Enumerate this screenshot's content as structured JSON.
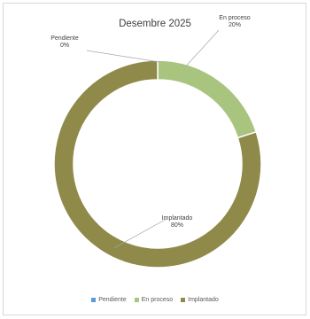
{
  "chart_data": {
    "type": "pie",
    "title": "Desembre 2025",
    "categories": [
      "Pendiente",
      "En proceso",
      "Implantado"
    ],
    "values": [
      0,
      20,
      80
    ],
    "data_labels": [
      {
        "name": "Pendiente",
        "value": "0%"
      },
      {
        "name": "En proceso",
        "value": "20%"
      },
      {
        "name": "Implantado",
        "value": "80%"
      }
    ],
    "colors": [
      "#5b9bd5",
      "#a9c47f",
      "#8f8a4a"
    ],
    "donut": true,
    "legend_position": "bottom"
  }
}
